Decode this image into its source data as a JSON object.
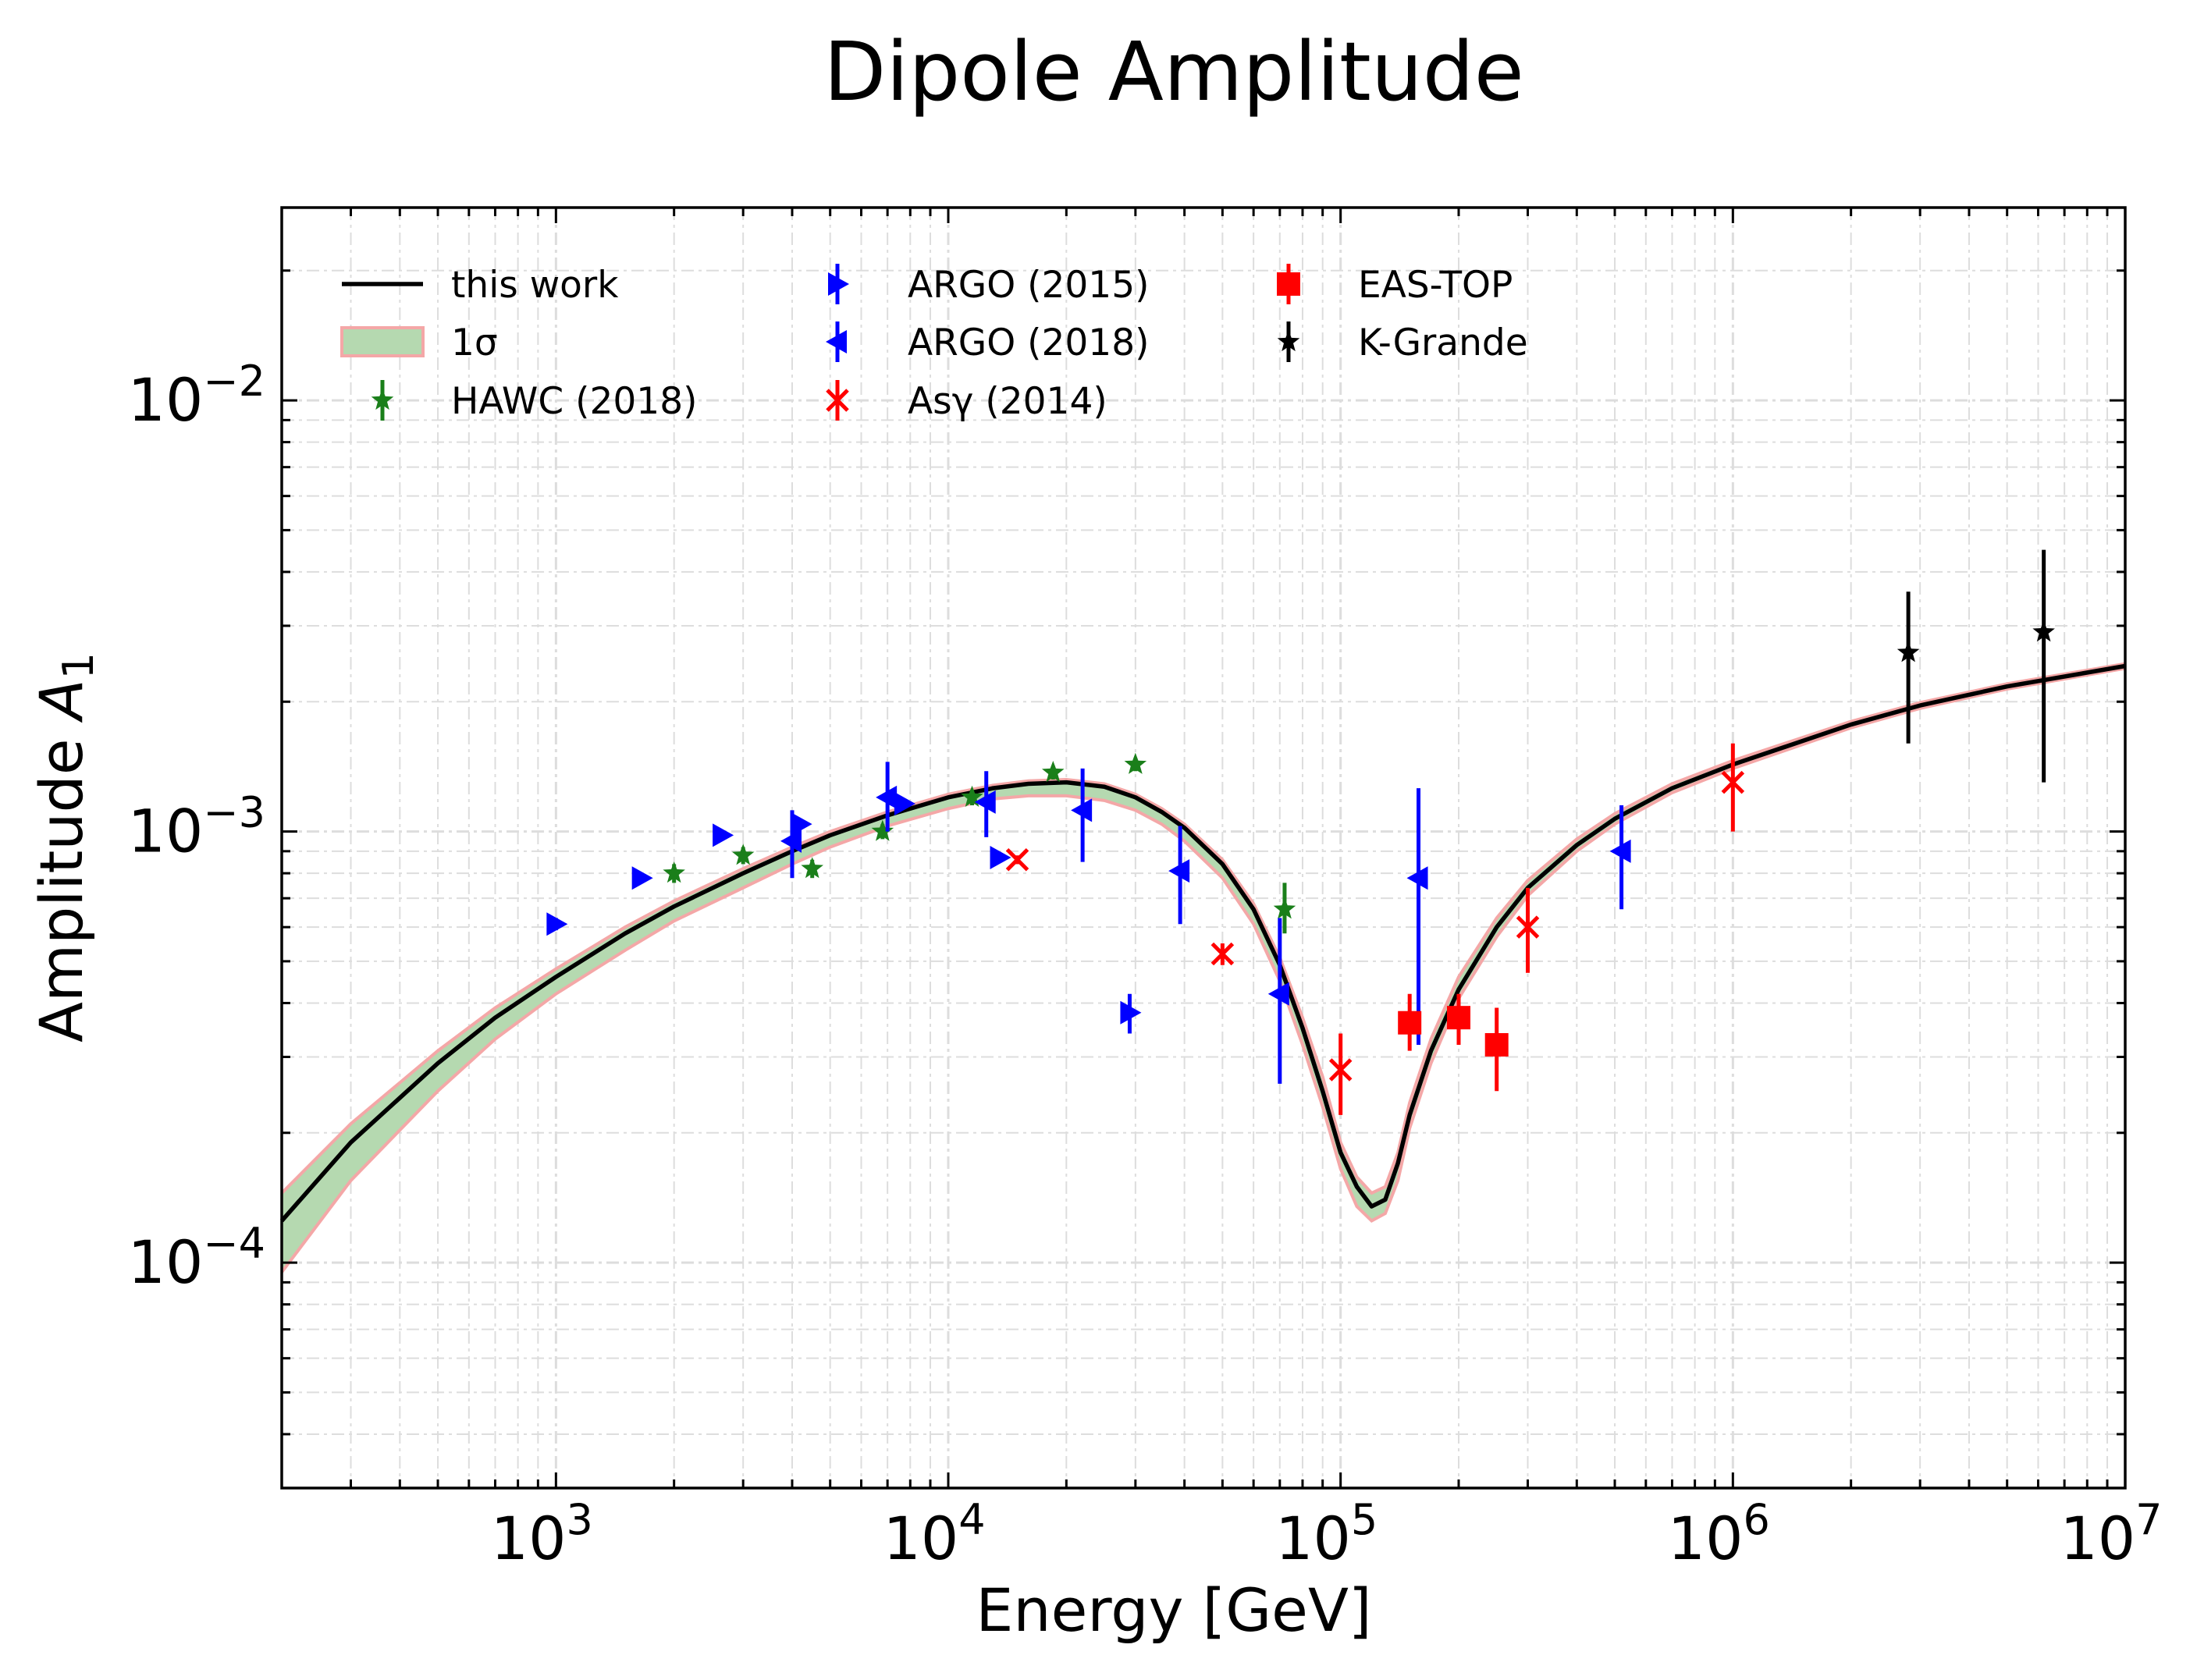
{
  "chart_data": {
    "type": "scatter",
    "title": "Dipole Amplitude",
    "xlabel": "Energy [GeV]",
    "ylabel_main": "Amplitude ",
    "ylabel_symbol": "A",
    "ylabel_sub": "1",
    "xscale": "log",
    "yscale": "log",
    "xlim": [
      200,
      10000000
    ],
    "ylim": [
      3e-05,
      0.028
    ],
    "grid": true,
    "legend_position": "top-left",
    "x_ticks": [
      {
        "value": 1000,
        "base": "10",
        "exp": "3"
      },
      {
        "value": 10000,
        "base": "10",
        "exp": "4"
      },
      {
        "value": 100000,
        "base": "10",
        "exp": "5"
      },
      {
        "value": 1000000,
        "base": "10",
        "exp": "6"
      },
      {
        "value": 10000000,
        "base": "10",
        "exp": "7"
      }
    ],
    "y_ticks": [
      {
        "value": 0.0001,
        "base": "10",
        "exp": "−4"
      },
      {
        "value": 0.001,
        "base": "10",
        "exp": "−3"
      },
      {
        "value": 0.01,
        "base": "10",
        "exp": "−2"
      }
    ],
    "model": {
      "name": "this work",
      "band_name": "1σ",
      "color": "#000000",
      "band_fill": "#b5d9b0",
      "band_edge": "#f4a7a7",
      "x": [
        200,
        300,
        500,
        700,
        1000,
        1500,
        2000,
        3000,
        4000,
        5000,
        7000,
        10000,
        13000,
        16000,
        20000,
        25000,
        30000,
        35000,
        40000,
        50000,
        60000,
        70000,
        80000,
        90000,
        100000,
        110000,
        120000,
        130000,
        140000,
        150000,
        170000,
        200000,
        250000,
        300000,
        400000,
        500000,
        700000,
        1000000,
        2000000,
        3000000,
        5000000,
        10000000
      ],
      "y": [
        0.000125,
        0.00019,
        0.00029,
        0.00037,
        0.00046,
        0.00058,
        0.00067,
        0.0008,
        0.0009,
        0.00098,
        0.00109,
        0.0012,
        0.00126,
        0.00129,
        0.0013,
        0.00127,
        0.0012,
        0.00111,
        0.00102,
        0.00084,
        0.00066,
        0.00049,
        0.00035,
        0.00025,
        0.00018,
        0.00015,
        0.000135,
        0.00014,
        0.00017,
        0.00022,
        0.00031,
        0.00043,
        0.0006,
        0.00074,
        0.00093,
        0.00107,
        0.00126,
        0.00143,
        0.00177,
        0.00196,
        0.00217,
        0.00242
      ],
      "band_low": [
        9.5e-05,
        0.000155,
        0.00025,
        0.00033,
        0.00042,
        0.00053,
        0.00062,
        0.00074,
        0.00084,
        0.00092,
        0.00103,
        0.00113,
        0.00119,
        0.00121,
        0.00121,
        0.00118,
        0.00112,
        0.00104,
        0.00095,
        0.00078,
        0.00061,
        0.00045,
        0.00032,
        0.00023,
        0.000165,
        0.000135,
        0.000125,
        0.00013,
        0.000155,
        0.000205,
        0.00029,
        0.00041,
        0.00057,
        0.00071,
        0.0009,
        0.00104,
        0.00123,
        0.0014,
        0.00174,
        0.00193,
        0.00214,
        0.00239
      ],
      "band_high": [
        0.000145,
        0.00021,
        0.00031,
        0.00039,
        0.00048,
        0.0006,
        0.00069,
        0.00082,
        0.00092,
        0.001,
        0.00111,
        0.00122,
        0.00128,
        0.00131,
        0.00132,
        0.00129,
        0.00122,
        0.00113,
        0.00104,
        0.00086,
        0.00068,
        0.00051,
        0.00037,
        0.00027,
        0.00019,
        0.000158,
        0.000145,
        0.00015,
        0.00018,
        0.000235,
        0.00033,
        0.00046,
        0.00063,
        0.00077,
        0.00096,
        0.0011,
        0.00129,
        0.00146,
        0.0018,
        0.00199,
        0.0022,
        0.00245
      ]
    },
    "series": [
      {
        "name": "HAWC (2018)",
        "color": "#1a7f1a",
        "marker": "star",
        "points": [
          {
            "x": 2000,
            "y": 0.0008,
            "ylo": 0.00076,
            "yhi": 0.00084
          },
          {
            "x": 3000,
            "y": 0.00088,
            "ylo": 0.00084,
            "yhi": 0.00092
          },
          {
            "x": 4500,
            "y": 0.00082,
            "ylo": 0.00078,
            "yhi": 0.00086
          },
          {
            "x": 6800,
            "y": 0.001,
            "ylo": 0.00096,
            "yhi": 0.00104
          },
          {
            "x": 11500,
            "y": 0.0012,
            "ylo": 0.00115,
            "yhi": 0.00125
          },
          {
            "x": 18500,
            "y": 0.00137,
            "ylo": 0.00132,
            "yhi": 0.00142
          },
          {
            "x": 30000,
            "y": 0.00143,
            "ylo": 0.00138,
            "yhi": 0.00148
          },
          {
            "x": 72000,
            "y": 0.00066,
            "ylo": 0.00058,
            "yhi": 0.00076
          }
        ]
      },
      {
        "name": "ARGO (2015)",
        "color": "#0000ff",
        "marker": "triangle-right",
        "points": [
          {
            "x": 1000,
            "y": 0.00061,
            "ylo": 0.00059,
            "yhi": 0.00063
          },
          {
            "x": 1650,
            "y": 0.00078,
            "ylo": 0.00076,
            "yhi": 0.0008
          },
          {
            "x": 2650,
            "y": 0.00098,
            "ylo": 0.00096,
            "yhi": 0.001
          },
          {
            "x": 4200,
            "y": 0.00104,
            "ylo": 0.00102,
            "yhi": 0.00106
          },
          {
            "x": 7700,
            "y": 0.00116,
            "ylo": 0.00114,
            "yhi": 0.00118
          },
          {
            "x": 13500,
            "y": 0.00087,
            "ylo": 0.00085,
            "yhi": 0.00089
          },
          {
            "x": 29000,
            "y": 0.00038,
            "ylo": 0.00034,
            "yhi": 0.00042
          }
        ]
      },
      {
        "name": "ARGO (2018)",
        "color": "#0000ff",
        "marker": "triangle-left",
        "points": [
          {
            "x": 4000,
            "y": 0.00095,
            "ylo": 0.00078,
            "yhi": 0.00112
          },
          {
            "x": 7000,
            "y": 0.0012,
            "ylo": 0.001,
            "yhi": 0.00145
          },
          {
            "x": 12500,
            "y": 0.00117,
            "ylo": 0.00097,
            "yhi": 0.00138
          },
          {
            "x": 22000,
            "y": 0.00112,
            "ylo": 0.00085,
            "yhi": 0.0014
          },
          {
            "x": 39000,
            "y": 0.00081,
            "ylo": 0.00061,
            "yhi": 0.00103
          },
          {
            "x": 70000,
            "y": 0.00042,
            "ylo": 0.00026,
            "yhi": 0.00063
          },
          {
            "x": 158000,
            "y": 0.00078,
            "ylo": 0.00032,
            "yhi": 0.00126
          },
          {
            "x": 520000,
            "y": 0.0009,
            "ylo": 0.00066,
            "yhi": 0.00115
          }
        ]
      },
      {
        "name": "Asγ (2014)",
        "color": "#ff0000",
        "marker": "x",
        "points": [
          {
            "x": 15000,
            "y": 0.00086,
            "ylo": 0.00084,
            "yhi": 0.00088
          },
          {
            "x": 50000,
            "y": 0.00052,
            "ylo": 0.00049,
            "yhi": 0.00055
          },
          {
            "x": 100000,
            "y": 0.00028,
            "ylo": 0.00022,
            "yhi": 0.00034
          },
          {
            "x": 300000,
            "y": 0.0006,
            "ylo": 0.00047,
            "yhi": 0.00074
          },
          {
            "x": 1000000,
            "y": 0.0013,
            "ylo": 0.001,
            "yhi": 0.0016
          }
        ]
      },
      {
        "name": "EAS-TOP",
        "color": "#ff0000",
        "marker": "square",
        "points": [
          {
            "x": 150000,
            "y": 0.00036,
            "ylo": 0.00031,
            "yhi": 0.00042
          },
          {
            "x": 200000,
            "y": 0.00037,
            "ylo": 0.00032,
            "yhi": 0.00042
          },
          {
            "x": 250000,
            "y": 0.00032,
            "ylo": 0.00025,
            "yhi": 0.00039
          }
        ]
      },
      {
        "name": "K-Grande",
        "color": "#000000",
        "marker": "star",
        "points": [
          {
            "x": 2800000,
            "y": 0.0026,
            "ylo": 0.0016,
            "yhi": 0.0036
          },
          {
            "x": 6200000,
            "y": 0.0029,
            "ylo": 0.0013,
            "yhi": 0.0045
          }
        ]
      }
    ]
  }
}
